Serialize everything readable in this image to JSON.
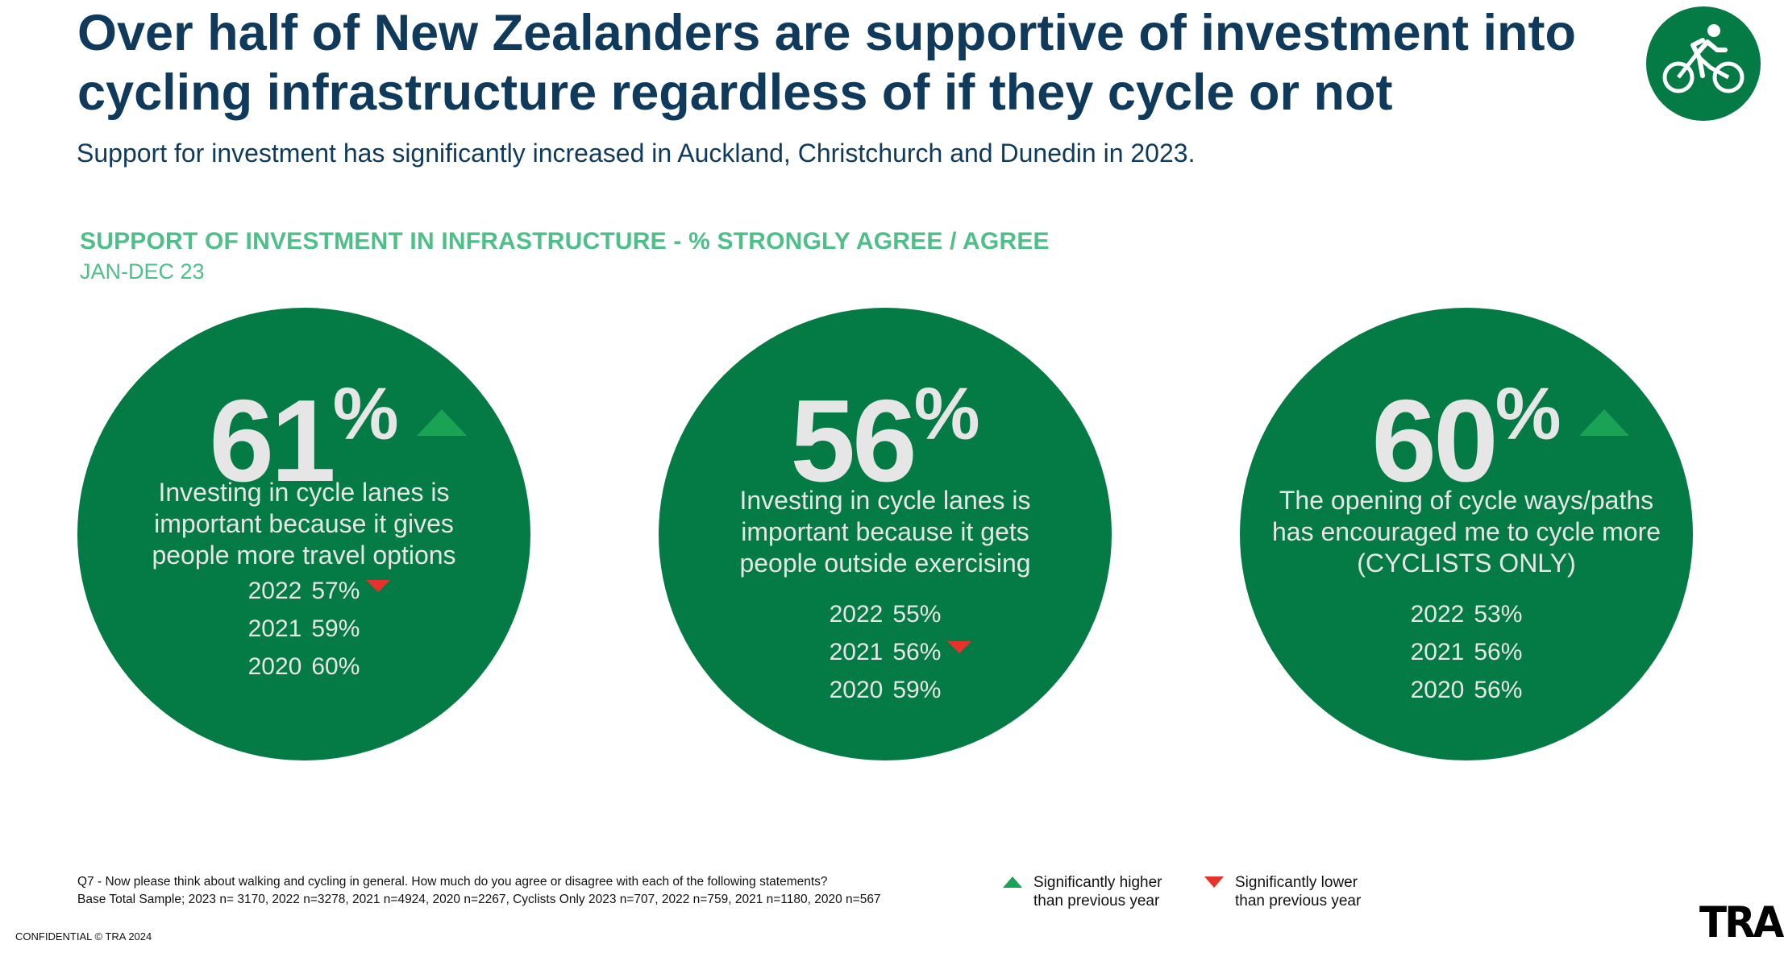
{
  "header": {
    "title": "Over half of New Zealanders are supportive of investment into cycling infrastructure regardless of if they cycle or not",
    "subtitle": "Support for investment has significantly increased in Auckland, Christchurch and Dunedin in 2023."
  },
  "section": {
    "title": "SUPPORT OF INVESTMENT IN INFRASTRUCTURE - % STRONGLY AGREE / AGREE",
    "period": "JAN-DEC 23"
  },
  "stats": [
    {
      "value": "61",
      "percent": "%",
      "trend_2023": "up",
      "description": [
        "Investing in cycle lanes is",
        "important because it gives",
        "people more travel options"
      ],
      "history": [
        {
          "year": "2022",
          "value": "57%",
          "trend": "down"
        },
        {
          "year": "2021",
          "value": "59%",
          "trend": ""
        },
        {
          "year": "2020",
          "value": "60%",
          "trend": ""
        }
      ]
    },
    {
      "value": "56",
      "percent": "%",
      "trend_2023": "",
      "description": [
        "Investing in cycle lanes is",
        "important because it gets",
        "people outside exercising"
      ],
      "history": [
        {
          "year": "2022",
          "value": "55%",
          "trend": ""
        },
        {
          "year": "2021",
          "value": "56%",
          "trend": "down"
        },
        {
          "year": "2020",
          "value": "59%",
          "trend": ""
        }
      ]
    },
    {
      "value": "60",
      "percent": "%",
      "trend_2023": "up",
      "description": [
        "The opening of cycle ways/paths",
        "has encouraged me to cycle more",
        "(CYCLISTS ONLY)"
      ],
      "history": [
        {
          "year": "2022",
          "value": "53%",
          "trend": ""
        },
        {
          "year": "2021",
          "value": "56%",
          "trend": ""
        },
        {
          "year": "2020",
          "value": "56%",
          "trend": ""
        }
      ]
    }
  ],
  "footnote": {
    "question": "Q7 - Now please think about walking and cycling in general. How much do you agree or disagree with each of the following statements?",
    "base": "Base Total Sample; 2023 n= 3170, 2022 n=3278, 2021 n=4924, 2020 n=2267, Cyclists Only 2023 n=707, 2022 n=759, 2021 n=1180, 2020 n=567"
  },
  "legend": {
    "higher_line1": "Significantly higher",
    "higher_line2": "than previous year",
    "lower_line1": "Significantly lower",
    "lower_line2": "than previous year"
  },
  "footer": {
    "confidential": "CONFIDENTIAL © TRA 2024",
    "logo": "TRA"
  },
  "icons": {
    "badge": "cyclist-icon",
    "higher": "triangle-up-icon",
    "lower": "triangle-down-icon"
  },
  "colors": {
    "brand_green": "#047a45",
    "title_navy": "#0f3a5c",
    "section_green": "#4fbf8a",
    "up_green": "#1aa255",
    "down_red": "#e8312b"
  }
}
